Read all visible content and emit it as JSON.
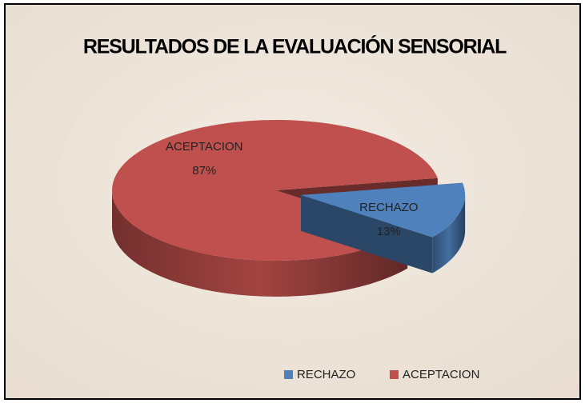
{
  "chart_data": {
    "type": "pie",
    "title": "RESULTADOS DE LA EVALUACIÓN SENSORIAL",
    "categories": [
      "RECHAZO",
      "ACEPTACION"
    ],
    "values": [
      13,
      87
    ],
    "value_labels": [
      "13%",
      "87%"
    ],
    "colors": [
      "#4f81bd",
      "#c0504d"
    ],
    "legend": "bottom"
  }
}
